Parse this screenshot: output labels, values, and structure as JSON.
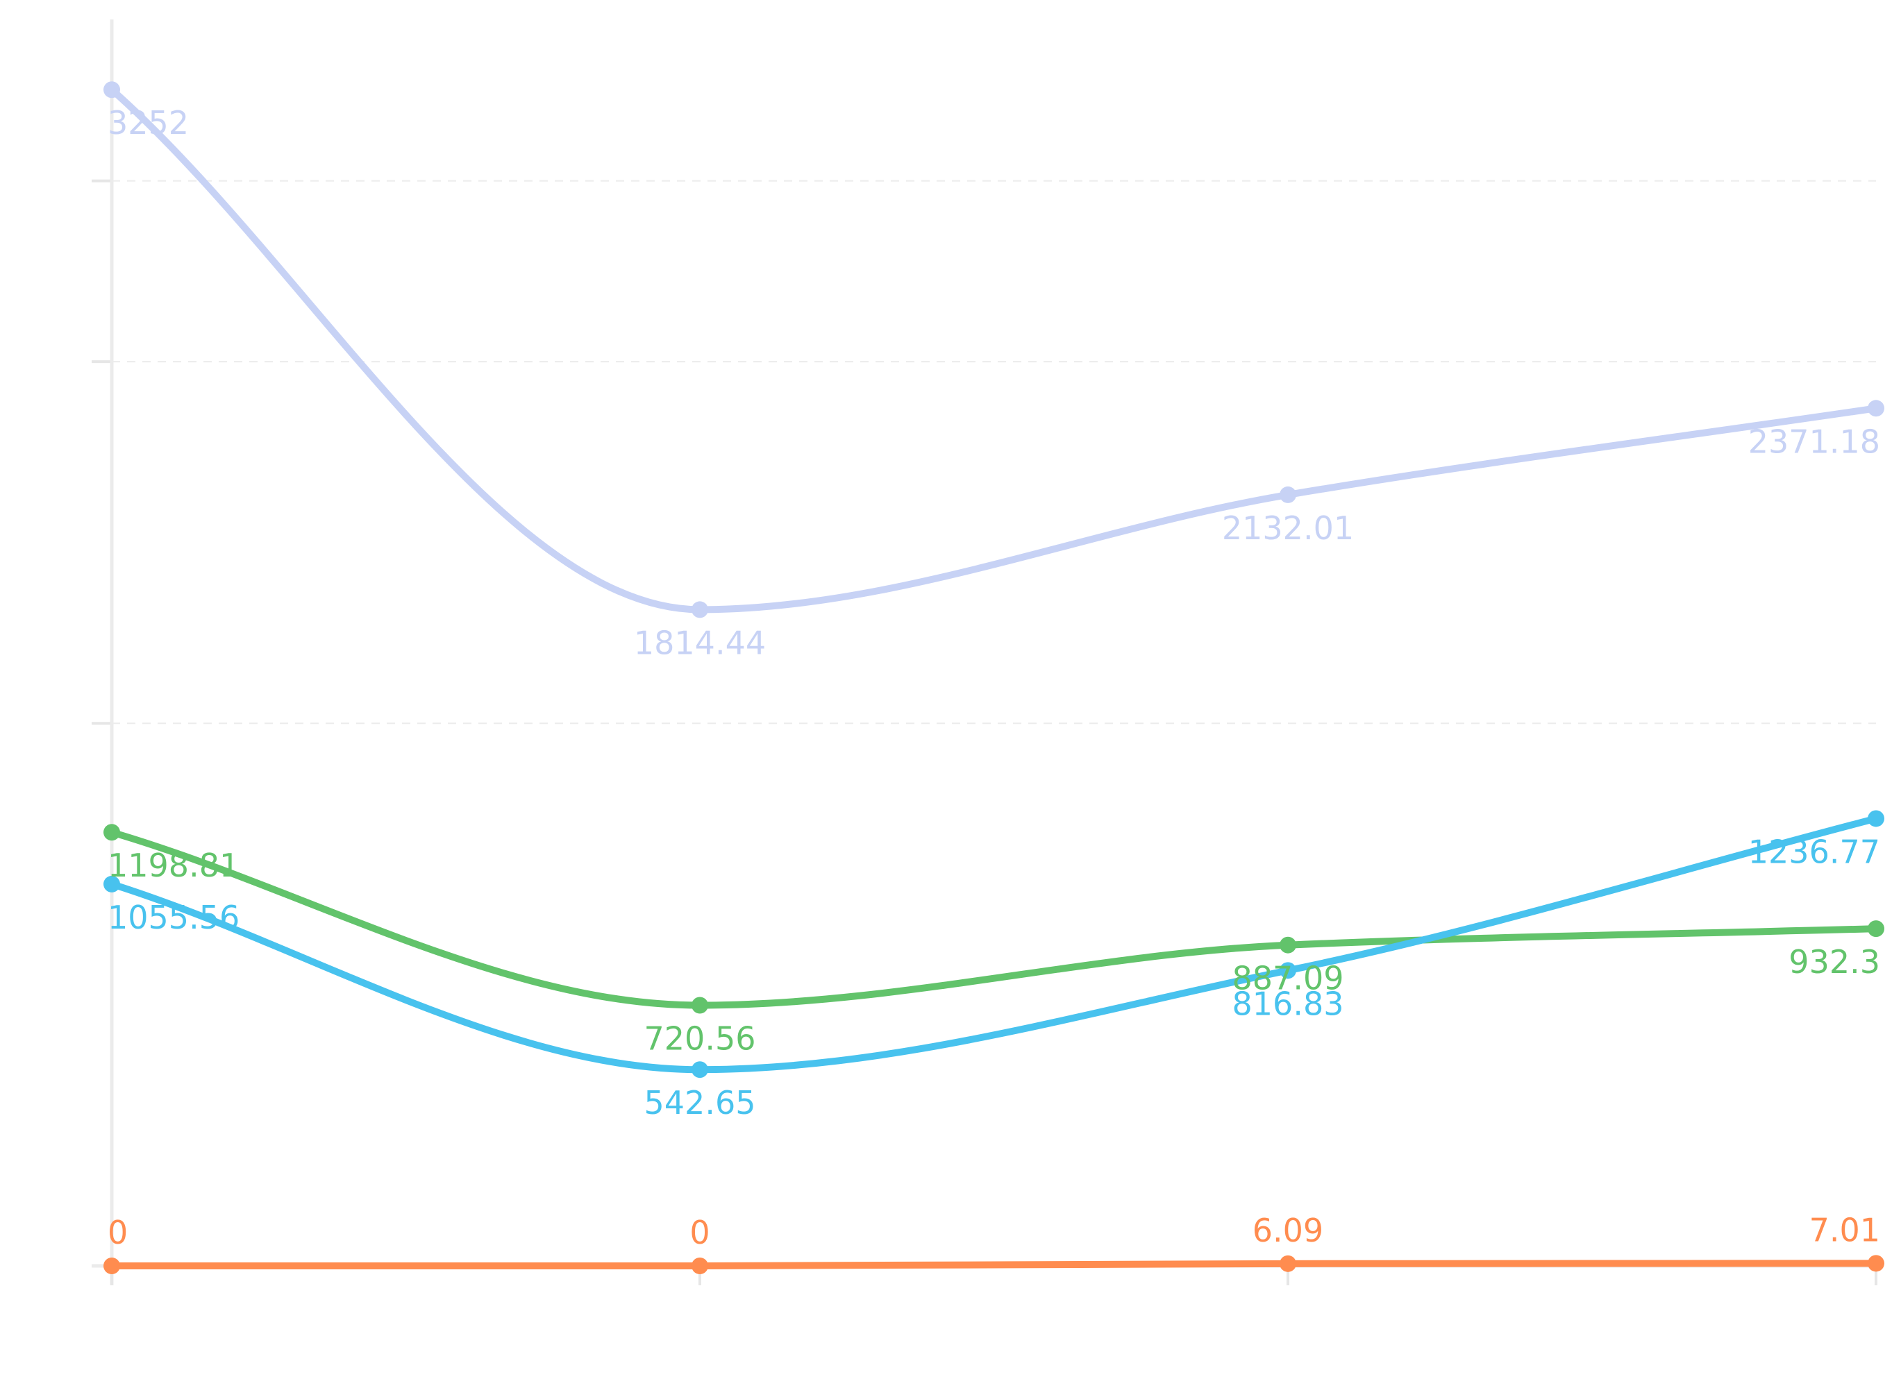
{
  "chart_data": {
    "type": "line",
    "categories": [
      "",
      "",
      "",
      ""
    ],
    "ylim": [
      0,
      3500
    ],
    "grid": true,
    "series": [
      {
        "color": "#c7d2f5",
        "values": [
          3252,
          1814.44,
          2132.01,
          2371.18
        ],
        "labels": [
          "3252",
          "1814.44",
          "2132.01",
          "2371.18"
        ]
      },
      {
        "color": "#62c36b",
        "values": [
          1198.81,
          720.56,
          887.09,
          932.3
        ],
        "labels": [
          "1198.81",
          "720.56",
          "887.09",
          "932.3"
        ]
      },
      {
        "color": "#48c2ee",
        "values": [
          1055.56,
          542.65,
          816.83,
          1236.77
        ],
        "labels": [
          "1055.56",
          "542.65",
          "816.83",
          "1236.77"
        ]
      },
      {
        "color": "#ff8c4f",
        "values": [
          0,
          0,
          6.09,
          7.01
        ],
        "labels": [
          "0",
          "0",
          "6.09",
          "7.01"
        ]
      }
    ]
  }
}
